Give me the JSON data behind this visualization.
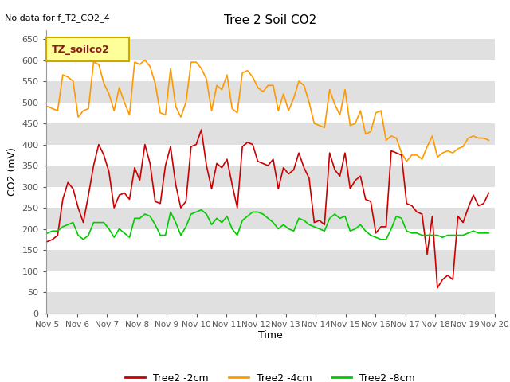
{
  "title": "Tree 2 Soil CO2",
  "no_data_text": "No data for f_T2_CO2_4",
  "xlabel": "Time",
  "ylabel": "CO2 (mV)",
  "ylim": [
    0,
    670
  ],
  "yticks": [
    0,
    50,
    100,
    150,
    200,
    250,
    300,
    350,
    400,
    450,
    500,
    550,
    600,
    650
  ],
  "xlim_start": 5.0,
  "xlim_end": 20.0,
  "xtick_positions": [
    5,
    6,
    7,
    8,
    9,
    10,
    11,
    12,
    13,
    14,
    15,
    16,
    17,
    18,
    19,
    20
  ],
  "xtick_labels": [
    "Nov 5",
    "Nov 6",
    "Nov 7",
    "Nov 8",
    "Nov 9",
    "Nov 10",
    "Nov 11",
    "Nov 12",
    "Nov 13",
    "Nov 14",
    "Nov 15",
    "Nov 16",
    "Nov 17",
    "Nov 18",
    "Nov 19",
    "Nov 20"
  ],
  "line_colors": {
    "red": "#cc0000",
    "orange": "#ff9900",
    "green": "#00cc00"
  },
  "legend_box_label": "TZ_soilco2",
  "legend_labels": [
    "Tree2 -2cm",
    "Tree2 -4cm",
    "Tree2 -8cm"
  ],
  "bg_band_color": "#e0e0e0",
  "bg_white_color": "#ffffff",
  "red_2cm": [
    170,
    175,
    185,
    270,
    310,
    295,
    250,
    215,
    280,
    350,
    400,
    375,
    335,
    250,
    280,
    285,
    270,
    345,
    315,
    400,
    355,
    265,
    260,
    350,
    395,
    305,
    250,
    265,
    395,
    400,
    435,
    350,
    295,
    355,
    345,
    365,
    305,
    250,
    395,
    405,
    400,
    360,
    355,
    350,
    365,
    295,
    345,
    330,
    340,
    380,
    345,
    320,
    215,
    220,
    210,
    380,
    340,
    325,
    380,
    295,
    315,
    325,
    270,
    265,
    190,
    205,
    205,
    385,
    380,
    375,
    260,
    255,
    240,
    235,
    140,
    230,
    60,
    80,
    90,
    80,
    230,
    215,
    250,
    280,
    255,
    260,
    285
  ],
  "orange_4cm": [
    490,
    485,
    480,
    565,
    560,
    550,
    465,
    480,
    485,
    595,
    590,
    545,
    520,
    480,
    535,
    500,
    470,
    595,
    590,
    600,
    585,
    545,
    475,
    470,
    580,
    490,
    465,
    500,
    595,
    595,
    580,
    555,
    480,
    540,
    530,
    565,
    485,
    475,
    570,
    575,
    560,
    535,
    525,
    540,
    540,
    480,
    520,
    480,
    510,
    550,
    540,
    500,
    450,
    445,
    440,
    530,
    495,
    470,
    530,
    445,
    450,
    480,
    425,
    430,
    475,
    480,
    410,
    420,
    415,
    380,
    360,
    375,
    375,
    365,
    395,
    420,
    370,
    380,
    385,
    380,
    390,
    395,
    415,
    420,
    415,
    415,
    410
  ],
  "green_8cm": [
    190,
    195,
    195,
    205,
    210,
    215,
    185,
    175,
    185,
    215,
    215,
    215,
    200,
    180,
    200,
    190,
    180,
    225,
    225,
    235,
    230,
    210,
    185,
    185,
    240,
    215,
    185,
    205,
    235,
    240,
    245,
    235,
    210,
    225,
    215,
    230,
    200,
    185,
    220,
    230,
    240,
    240,
    235,
    225,
    215,
    200,
    210,
    200,
    195,
    225,
    220,
    210,
    205,
    200,
    195,
    225,
    235,
    225,
    230,
    195,
    200,
    210,
    195,
    185,
    180,
    175,
    175,
    200,
    230,
    225,
    195,
    190,
    190,
    185,
    185,
    185,
    185,
    180,
    185,
    185,
    185,
    185,
    190,
    195,
    190,
    190,
    190
  ]
}
